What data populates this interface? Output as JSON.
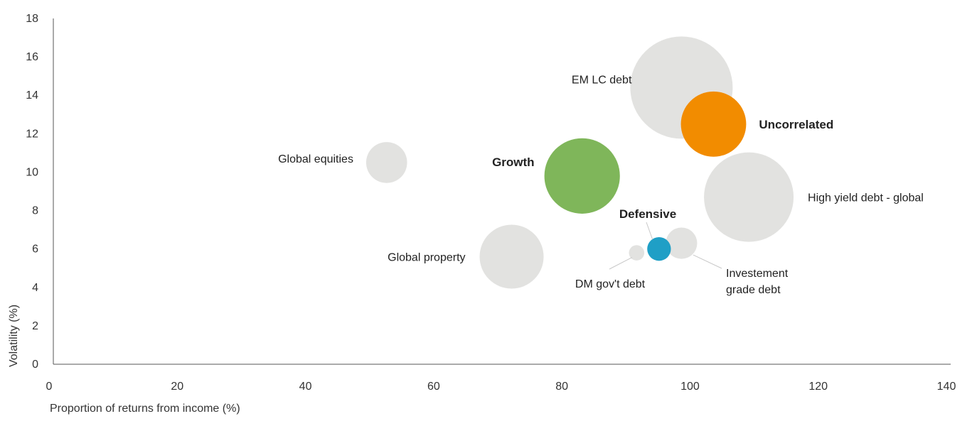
{
  "chart_data": {
    "type": "scatter",
    "subtype": "bubble",
    "title": "",
    "xlabel": "Proportion of returns from income (%)",
    "ylabel": "Volatility (%)",
    "xlim": [
      0,
      140
    ],
    "ylim": [
      0,
      18
    ],
    "xticks": [
      0,
      20,
      40,
      60,
      80,
      100,
      120,
      140
    ],
    "yticks": [
      0,
      2,
      4,
      6,
      8,
      10,
      12,
      14,
      16,
      18
    ],
    "grid": false,
    "colors": {
      "neutral": "#e2e2e0",
      "growth": "#7fb65a",
      "uncorrelated": "#f28c00",
      "defensive": "#1f9fc6",
      "axis": "#555555",
      "leader": "#c8c8c8"
    },
    "bubbles": [
      {
        "label": "EM LC debt",
        "x": 98,
        "y": 14.4,
        "size": 16,
        "category": "neutral",
        "bold": false
      },
      {
        "label": "High yield debt - global",
        "x": 108.5,
        "y": 8.7,
        "size": 14,
        "category": "neutral",
        "bold": false
      },
      {
        "label": "Global property",
        "x": 71.5,
        "y": 5.6,
        "size": 10,
        "category": "neutral",
        "bold": false
      },
      {
        "label": "Global equities",
        "x": 52,
        "y": 10.5,
        "size": 6.4,
        "category": "neutral",
        "bold": false
      },
      {
        "label": "Investement grade debt",
        "label_lines": [
          "Investement",
          "grade debt"
        ],
        "x": 98,
        "y": 6.3,
        "size": 4.9,
        "category": "neutral",
        "bold": false
      },
      {
        "label": "DM gov't debt",
        "x": 91,
        "y": 5.8,
        "size": 2.4,
        "category": "neutral",
        "bold": false
      },
      {
        "label": "Growth",
        "x": 82.5,
        "y": 9.8,
        "size": 11.8,
        "category": "growth",
        "bold": true
      },
      {
        "label": "Uncorrelated",
        "x": 103,
        "y": 12.5,
        "size": 10.2,
        "category": "uncorrelated",
        "bold": true
      },
      {
        "label": "Defensive",
        "x": 94.5,
        "y": 6.0,
        "size": 3.7,
        "category": "defensive",
        "bold": true
      }
    ]
  }
}
